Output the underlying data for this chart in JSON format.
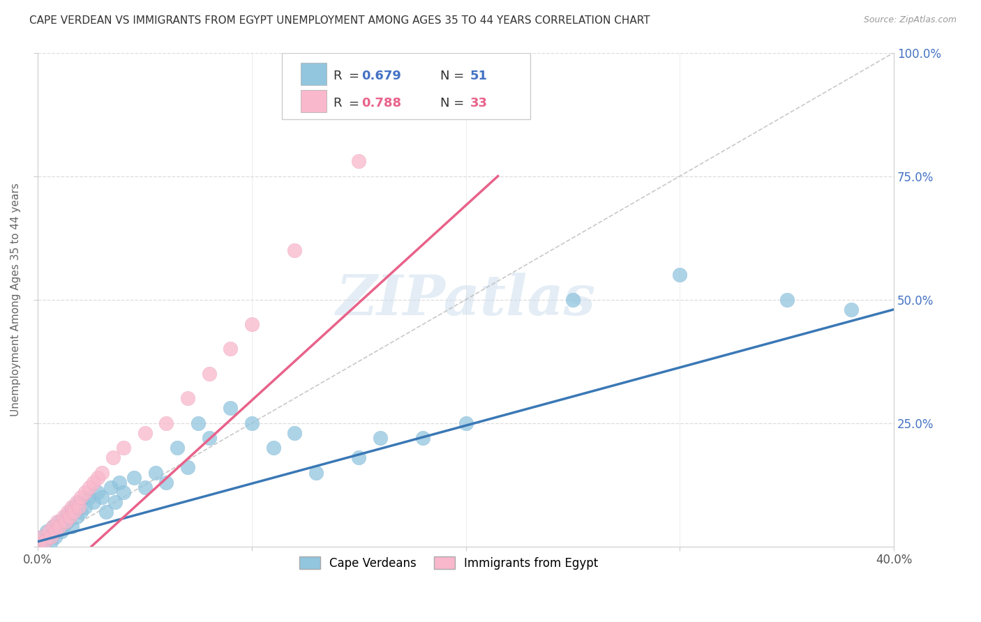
{
  "title": "CAPE VERDEAN VS IMMIGRANTS FROM EGYPT UNEMPLOYMENT AMONG AGES 35 TO 44 YEARS CORRELATION CHART",
  "source": "Source: ZipAtlas.com",
  "ylabel": "Unemployment Among Ages 35 to 44 years",
  "xlim": [
    0.0,
    0.4
  ],
  "ylim": [
    0.0,
    1.0
  ],
  "series1_label": "Cape Verdeans",
  "series2_label": "Immigrants from Egypt",
  "series1_color": "#92C5DE",
  "series2_color": "#F9B8CC",
  "line1_color": "#3A78B5",
  "line2_color": "#E8628A",
  "background_color": "#FFFFFF",
  "blue_r": "0.679",
  "blue_n": "51",
  "pink_r": "0.788",
  "pink_n": "33",
  "blue_line_x0": 0.0,
  "blue_line_y0": 0.01,
  "blue_line_x1": 0.4,
  "blue_line_y1": 0.48,
  "pink_line_x0": 0.025,
  "pink_line_y0": 0.0,
  "pink_line_x1": 0.215,
  "pink_line_y1": 0.75,
  "cape_verdean_x": [
    0.001,
    0.002,
    0.003,
    0.004,
    0.005,
    0.006,
    0.007,
    0.008,
    0.009,
    0.01,
    0.011,
    0.012,
    0.013,
    0.014,
    0.015,
    0.016,
    0.017,
    0.018,
    0.019,
    0.02,
    0.022,
    0.024,
    0.026,
    0.028,
    0.03,
    0.032,
    0.034,
    0.036,
    0.038,
    0.04,
    0.045,
    0.05,
    0.055,
    0.06,
    0.065,
    0.07,
    0.075,
    0.08,
    0.09,
    0.1,
    0.11,
    0.12,
    0.13,
    0.15,
    0.16,
    0.18,
    0.2,
    0.25,
    0.3,
    0.35,
    0.38
  ],
  "cape_verdean_y": [
    0.01,
    0.02,
    0.01,
    0.03,
    0.02,
    0.01,
    0.04,
    0.02,
    0.03,
    0.05,
    0.03,
    0.04,
    0.06,
    0.05,
    0.07,
    0.04,
    0.08,
    0.06,
    0.09,
    0.07,
    0.08,
    0.1,
    0.09,
    0.11,
    0.1,
    0.07,
    0.12,
    0.09,
    0.13,
    0.11,
    0.14,
    0.12,
    0.15,
    0.13,
    0.2,
    0.16,
    0.25,
    0.22,
    0.28,
    0.25,
    0.2,
    0.23,
    0.15,
    0.18,
    0.22,
    0.22,
    0.25,
    0.5,
    0.55,
    0.5,
    0.48
  ],
  "egypt_x": [
    0.001,
    0.002,
    0.003,
    0.005,
    0.006,
    0.007,
    0.008,
    0.009,
    0.01,
    0.012,
    0.013,
    0.014,
    0.015,
    0.016,
    0.017,
    0.018,
    0.019,
    0.02,
    0.022,
    0.024,
    0.026,
    0.028,
    0.03,
    0.035,
    0.04,
    0.05,
    0.06,
    0.07,
    0.08,
    0.09,
    0.1,
    0.12,
    0.15
  ],
  "egypt_y": [
    0.01,
    0.02,
    0.01,
    0.03,
    0.02,
    0.04,
    0.03,
    0.05,
    0.04,
    0.06,
    0.05,
    0.07,
    0.06,
    0.08,
    0.07,
    0.09,
    0.08,
    0.1,
    0.11,
    0.12,
    0.13,
    0.14,
    0.15,
    0.18,
    0.2,
    0.23,
    0.25,
    0.3,
    0.35,
    0.4,
    0.45,
    0.6,
    0.78
  ]
}
